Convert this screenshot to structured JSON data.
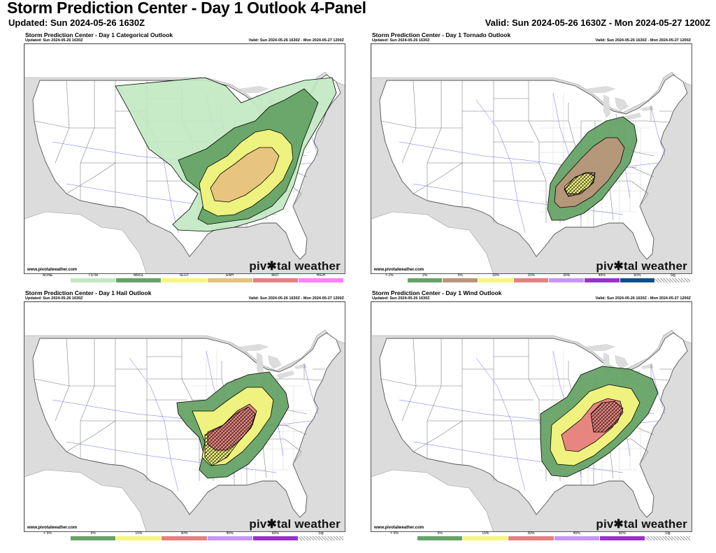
{
  "header": {
    "title": "Storm Prediction Center - Day 1 Outlook 4-Panel",
    "updated": "Updated: Sun 2024-05-26 1630Z",
    "valid": "Valid: Sun 2024-05-26 1630Z - Mon 2024-05-27 1200Z"
  },
  "colors": {
    "none": "#ffffff",
    "tstm": "#c1e9c1",
    "mrgl": "#66a366",
    "slgt": "#f6f67f",
    "enh": "#e6c27f",
    "mdt": "#e67f7f",
    "high": "#ff7fff",
    "t2": "#66a366",
    "t5": "#b8967a",
    "t10": "#f6f67f",
    "t15": "#e67f7f",
    "t30": "#c896f7",
    "t45": "#9932cc",
    "t60": "#104e8b",
    "p5": "#66a366",
    "p15": "#f6f67f",
    "p30": "#e67f7f",
    "p45": "#c896f7",
    "p60": "#9932cc",
    "land": "#ffffff",
    "water": "#dcdcdc"
  },
  "panels": [
    {
      "id": "categorical",
      "title": "Storm Prediction Center - Day 1 Categorical Outlook",
      "updated": "Updated: Sun 2024-05-26 1630Z",
      "valid": "Valid: Sun 2024-05-26 1630Z - Mon 2024-05-27 1200Z",
      "site": "www.pivotalweather.com",
      "logo": "piv✱tal weather",
      "legend": [
        {
          "label": "NONE",
          "color": "#ffffff",
          "hatched": false
        },
        {
          "label": "TSTM",
          "color": "#c1e9c1",
          "hatched": false
        },
        {
          "label": "MRGL",
          "color": "#66a366",
          "hatched": false
        },
        {
          "label": "SLGT",
          "color": "#f6f67f",
          "hatched": false
        },
        {
          "label": "ENH",
          "color": "#e6c27f",
          "hatched": false
        },
        {
          "label": "MDT",
          "color": "#e67f7f",
          "hatched": false
        },
        {
          "label": "HIGH",
          "color": "#ff7fff",
          "hatched": false
        }
      ]
    },
    {
      "id": "tornado",
      "title": "Storm Prediction Center - Day 1 Tornado Outlook",
      "updated": "Updated: Sun 2024-05-26 1630Z",
      "valid": "Valid: Sun 2024-05-26 1630Z - Mon 2024-05-27 1200Z",
      "site": "www.pivotalweather.com",
      "logo": "piv✱tal weather",
      "legend": [
        {
          "label": "< 2%",
          "color": "#ffffff",
          "hatched": false
        },
        {
          "label": "2%",
          "color": "#66a366",
          "hatched": false
        },
        {
          "label": "5%",
          "color": "#b8967a",
          "hatched": false
        },
        {
          "label": "10%",
          "color": "#f6f67f",
          "hatched": false
        },
        {
          "label": "15%",
          "color": "#e67f7f",
          "hatched": false
        },
        {
          "label": "30%",
          "color": "#c896f7",
          "hatched": false
        },
        {
          "label": "45%",
          "color": "#9932cc",
          "hatched": false
        },
        {
          "label": "60%",
          "color": "#104e8b",
          "hatched": false
        },
        {
          "label": "Sig",
          "color": "#ffffff",
          "hatched": true
        }
      ]
    },
    {
      "id": "hail",
      "title": "Storm Prediction Center - Day 1 Hail Outlook",
      "updated": "Updated: Sun 2024-05-26 1630Z",
      "valid": "Valid: Sun 2024-05-26 1630Z - Mon 2024-05-27 1200Z",
      "site": "www.pivotalweather.com",
      "logo": "piv✱tal weather",
      "legend": [
        {
          "label": "< 5%",
          "color": "#ffffff",
          "hatched": false
        },
        {
          "label": "5%",
          "color": "#66a366",
          "hatched": false
        },
        {
          "label": "15%",
          "color": "#f6f67f",
          "hatched": false
        },
        {
          "label": "30%",
          "color": "#e67f7f",
          "hatched": false
        },
        {
          "label": "45%",
          "color": "#c896f7",
          "hatched": false
        },
        {
          "label": "60%",
          "color": "#9932cc",
          "hatched": false
        },
        {
          "label": "Sig",
          "color": "#ffffff",
          "hatched": true
        }
      ]
    },
    {
      "id": "wind",
      "title": "Storm Prediction Center - Day 1 Wind Outlook",
      "updated": "Updated: Sun 2024-05-26 1630Z",
      "valid": "Valid: Sun 2024-05-26 1630Z - Mon 2024-05-27 1200Z",
      "site": "www.pivotalweather.com",
      "logo": "piv✱tal weather",
      "legend": [
        {
          "label": "< 5%",
          "color": "#ffffff",
          "hatched": false
        },
        {
          "label": "5%",
          "color": "#66a366",
          "hatched": false
        },
        {
          "label": "15%",
          "color": "#f6f67f",
          "hatched": false
        },
        {
          "label": "30%",
          "color": "#e67f7f",
          "hatched": false
        },
        {
          "label": "45%",
          "color": "#c896f7",
          "hatched": false
        },
        {
          "label": "60%",
          "color": "#9932cc",
          "hatched": false
        },
        {
          "label": "Sig",
          "color": "#ffffff",
          "hatched": true
        }
      ]
    }
  ]
}
